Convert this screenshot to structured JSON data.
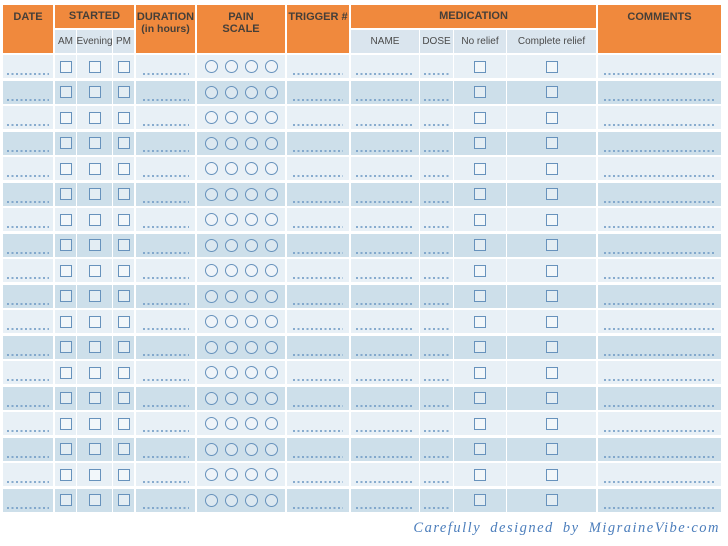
{
  "header": {
    "columns": {
      "date": "DATE",
      "started": "STARTED",
      "started_sub": [
        "AM",
        "Evening",
        "PM"
      ],
      "duration_line1": "DURATION",
      "duration_line2": "(in hours)",
      "pain_line1": "PAIN",
      "pain_line2": "SCALE",
      "trigger": "TRIGGER #",
      "medication": "MEDICATION",
      "medication_sub": [
        "NAME",
        "DOSE",
        "No relief",
        "Complete relief"
      ],
      "comments": "COMMENTS"
    }
  },
  "table": {
    "row_count": 18,
    "pain_scale_circles_per_row": 4,
    "fill_in_fields_per_row": [
      "date",
      "duration",
      "trigger",
      "medication-name",
      "dose",
      "comments"
    ],
    "checkboxes_per_row": [
      "AM",
      "Evening",
      "PM",
      "No relief",
      "Complete relief"
    ]
  },
  "colors": {
    "orange": "#F0893D",
    "header_text": "#453F39",
    "subheader_bg": "#DAE5EE",
    "subheader_text": "#4A4A4A",
    "row_light": "#E8F0F6",
    "row_dark": "#CDDFEA",
    "ink_blue": "#6792BC",
    "line_blue": "#6F9AC4",
    "footer_blue": "#4C7EBC",
    "page_bg": "#FFFFFF"
  },
  "footer": {
    "credit": "Carefully designed by MigraineVibe·com"
  }
}
